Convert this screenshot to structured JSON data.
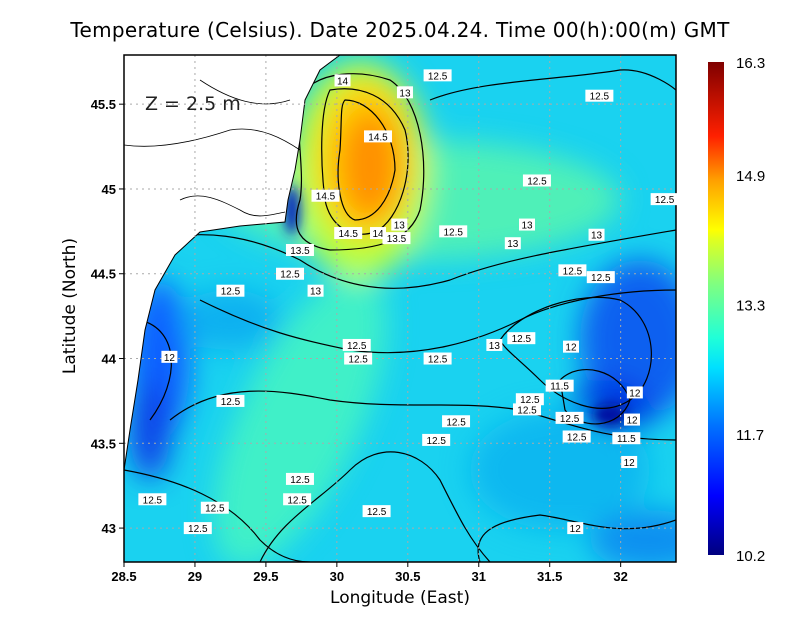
{
  "chart_data": {
    "type": "heatmap",
    "title": "Temperature (Celsius). Date 2025.04.24. Time 00(h):00(m)  GMT",
    "xlabel": "Longitude (East)",
    "ylabel": "Latitude (North)",
    "annotation": "Z = 2.5 m",
    "xlim": [
      28.5,
      32.39
    ],
    "ylim": [
      42.8,
      45.79
    ],
    "xticks": [
      "28.5",
      "29",
      "29.5",
      "30",
      "30.5",
      "31",
      "31.5",
      "32"
    ],
    "xtick_values": [
      28.5,
      29,
      29.5,
      30,
      30.5,
      31,
      31.5,
      32
    ],
    "yticks": [
      "43",
      "43.5",
      "44",
      "44.5",
      "45",
      "45.5"
    ],
    "ytick_values": [
      43,
      43.5,
      44,
      44.5,
      45,
      45.5
    ],
    "grid": true,
    "colorbar": {
      "min": 10.2,
      "max": 16.3,
      "tick_labels": [
        "10.2",
        "11.7",
        "13.3",
        "14.9",
        "16.3"
      ],
      "tick_values": [
        10.2,
        11.7,
        13.3,
        14.9,
        16.3
      ]
    },
    "contour_labels": [
      {
        "text": "14",
        "lon": 30.04,
        "lat": 45.64
      },
      {
        "text": "12.5",
        "lon": 30.71,
        "lat": 45.67
      },
      {
        "text": "13",
        "lon": 30.48,
        "lat": 45.57
      },
      {
        "text": "12.5",
        "lon": 31.85,
        "lat": 45.55
      },
      {
        "text": "14.5",
        "lon": 30.29,
        "lat": 45.31
      },
      {
        "text": "12.5",
        "lon": 31.41,
        "lat": 45.05
      },
      {
        "text": "14.5",
        "lon": 29.92,
        "lat": 44.96
      },
      {
        "text": "12.5",
        "lon": 32.31,
        "lat": 44.94
      },
      {
        "text": "13",
        "lon": 30.44,
        "lat": 44.79
      },
      {
        "text": "13",
        "lon": 31.34,
        "lat": 44.79
      },
      {
        "text": "14.5",
        "lon": 30.08,
        "lat": 44.74
      },
      {
        "text": "14",
        "lon": 30.29,
        "lat": 44.74
      },
      {
        "text": "13.5",
        "lon": 30.42,
        "lat": 44.71
      },
      {
        "text": "12.5",
        "lon": 30.82,
        "lat": 44.75
      },
      {
        "text": "13",
        "lon": 31.83,
        "lat": 44.73
      },
      {
        "text": "13",
        "lon": 31.24,
        "lat": 44.68
      },
      {
        "text": "13.5",
        "lon": 29.74,
        "lat": 44.64
      },
      {
        "text": "12.5",
        "lon": 29.67,
        "lat": 44.5
      },
      {
        "text": "12.5",
        "lon": 31.66,
        "lat": 44.52
      },
      {
        "text": "12.5",
        "lon": 31.86,
        "lat": 44.48
      },
      {
        "text": "13",
        "lon": 29.85,
        "lat": 44.4
      },
      {
        "text": "12.5",
        "lon": 29.25,
        "lat": 44.4
      },
      {
        "text": "12.5",
        "lon": 30.14,
        "lat": 44.08
      },
      {
        "text": "12.5",
        "lon": 30.15,
        "lat": 44.0
      },
      {
        "text": "12",
        "lon": 28.82,
        "lat": 44.01
      },
      {
        "text": "12.5",
        "lon": 30.71,
        "lat": 44.0
      },
      {
        "text": "13",
        "lon": 31.11,
        "lat": 44.08
      },
      {
        "text": "12.5",
        "lon": 31.3,
        "lat": 44.12
      },
      {
        "text": "12",
        "lon": 31.65,
        "lat": 44.07
      },
      {
        "text": "11.5",
        "lon": 31.57,
        "lat": 43.84
      },
      {
        "text": "12.5",
        "lon": 31.36,
        "lat": 43.76
      },
      {
        "text": "12.5",
        "lon": 31.34,
        "lat": 43.7
      },
      {
        "text": "12",
        "lon": 32.1,
        "lat": 43.8
      },
      {
        "text": "12.5",
        "lon": 29.25,
        "lat": 43.75
      },
      {
        "text": "12.5",
        "lon": 31.64,
        "lat": 43.65
      },
      {
        "text": "12",
        "lon": 32.08,
        "lat": 43.64
      },
      {
        "text": "12.5",
        "lon": 30.84,
        "lat": 43.63
      },
      {
        "text": "12.5",
        "lon": 30.7,
        "lat": 43.52
      },
      {
        "text": "12.5",
        "lon": 31.69,
        "lat": 43.54
      },
      {
        "text": "11.5",
        "lon": 32.04,
        "lat": 43.53
      },
      {
        "text": "12",
        "lon": 32.06,
        "lat": 43.39
      },
      {
        "text": "12.5",
        "lon": 29.74,
        "lat": 43.29
      },
      {
        "text": "12.5",
        "lon": 29.72,
        "lat": 43.17
      },
      {
        "text": "12.5",
        "lon": 28.7,
        "lat": 43.17
      },
      {
        "text": "12.5",
        "lon": 29.14,
        "lat": 43.12
      },
      {
        "text": "12.5",
        "lon": 30.28,
        "lat": 43.1
      },
      {
        "text": "12.5",
        "lon": 29.02,
        "lat": 43.0
      },
      {
        "text": "12",
        "lon": 31.68,
        "lat": 43.0
      }
    ],
    "colors": {
      "min": "#00007f",
      "low": "#0000ff",
      "mid_low": "#0080ff",
      "mid": "#00ffff",
      "mid_high": "#80ff80",
      "high_mid": "#ffff00",
      "high": "#ff8000",
      "max": "#7f0000",
      "land": "#ffffff"
    }
  }
}
